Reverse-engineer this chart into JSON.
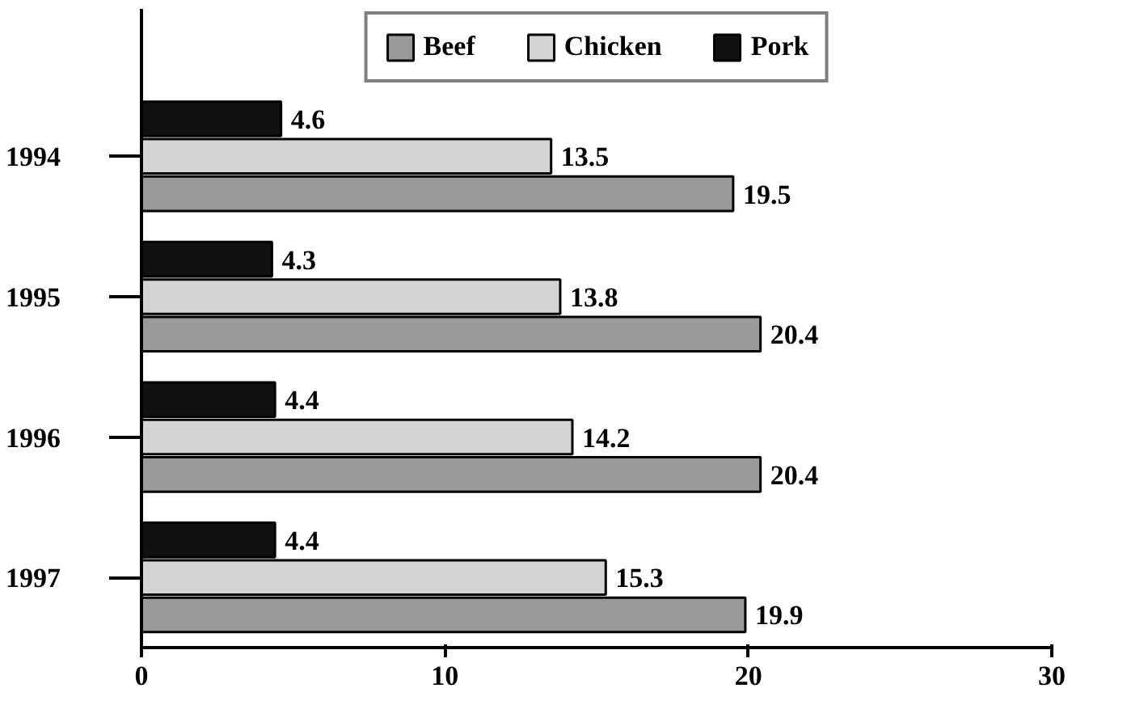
{
  "chart_data": {
    "type": "bar",
    "orientation": "horizontal",
    "categories": [
      "1994",
      "1995",
      "1996",
      "1997"
    ],
    "series": [
      {
        "name": "Beef",
        "color": "#9a9a9a",
        "values": [
          19.5,
          20.4,
          20.4,
          19.9
        ]
      },
      {
        "name": "Chicken",
        "color": "#d4d4d4",
        "values": [
          13.5,
          13.8,
          14.2,
          15.3
        ]
      },
      {
        "name": "Pork",
        "color": "#111111",
        "values": [
          4.6,
          4.3,
          4.4,
          4.4
        ]
      }
    ],
    "xlim": [
      0,
      30
    ],
    "xticks": [
      0,
      10,
      20,
      30
    ],
    "data_labels": true,
    "legend": "top",
    "grid": false
  }
}
